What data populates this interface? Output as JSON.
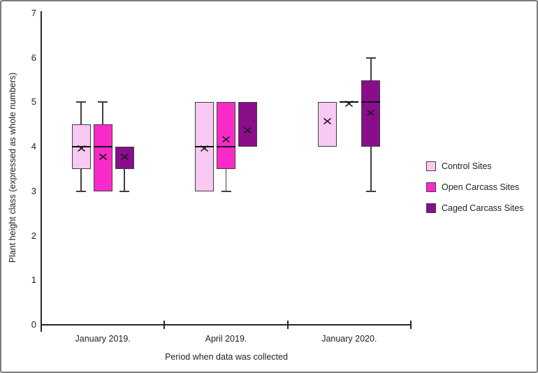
{
  "figure": {
    "background": "#ffffff",
    "border_color": "#7c7c7c"
  },
  "chart_data": {
    "type": "boxplot",
    "title": "",
    "xlabel": "Period when data was collected",
    "ylabel": "Plant height class (expressed as whole numbers)",
    "ylim": [
      0,
      7
    ],
    "yticks": [
      0,
      1,
      2,
      3,
      4,
      5,
      6,
      7
    ],
    "grid": false,
    "legend_position": "right",
    "mean_marker": "x-cross",
    "categories": [
      "January 2019.",
      "April 2019.",
      "January 2020."
    ],
    "series": [
      {
        "name": "Control Sites",
        "color": "#f8c9f3",
        "boxes": [
          {
            "category": "January 2019.",
            "whisker_low": 3,
            "q1": 3.5,
            "median": 4,
            "q3": 4.5,
            "whisker_high": 5,
            "mean": 4
          },
          {
            "category": "April 2019.",
            "whisker_low": 3,
            "q1": 3,
            "median": 4,
            "q3": 5,
            "whisker_high": 5,
            "mean": 4
          },
          {
            "category": "January 2020.",
            "whisker_low": 4,
            "q1": 4,
            "median": 5,
            "q3": 5,
            "whisker_high": 5,
            "mean": 4.6
          }
        ]
      },
      {
        "name": "Open Carcass Sites",
        "color": "#f92bc8",
        "boxes": [
          {
            "category": "January 2019.",
            "whisker_low": 3,
            "q1": 3,
            "median": 4,
            "q3": 4.5,
            "whisker_high": 5,
            "mean": 3.8
          },
          {
            "category": "April 2019.",
            "whisker_low": 3,
            "q1": 3.5,
            "median": 4,
            "q3": 5,
            "whisker_high": 5,
            "mean": 4.2
          },
          {
            "category": "January 2020.",
            "whisker_low": 5,
            "q1": 5,
            "median": 5,
            "q3": 5,
            "whisker_high": 5,
            "mean": 5
          }
        ]
      },
      {
        "name": "Caged Carcass Sites",
        "color": "#8a0d8c",
        "boxes": [
          {
            "category": "January 2019.",
            "whisker_low": 3,
            "q1": 3.5,
            "median": 4,
            "q3": 4,
            "whisker_high": 4,
            "mean": 3.8
          },
          {
            "category": "April 2019.",
            "whisker_low": 4,
            "q1": 4,
            "median": 4,
            "q3": 5,
            "whisker_high": 5,
            "mean": 4.4
          },
          {
            "category": "January 2020.",
            "whisker_low": 3,
            "q1": 4,
            "median": 5,
            "q3": 5.5,
            "whisker_high": 6,
            "mean": 4.8
          }
        ]
      }
    ]
  }
}
